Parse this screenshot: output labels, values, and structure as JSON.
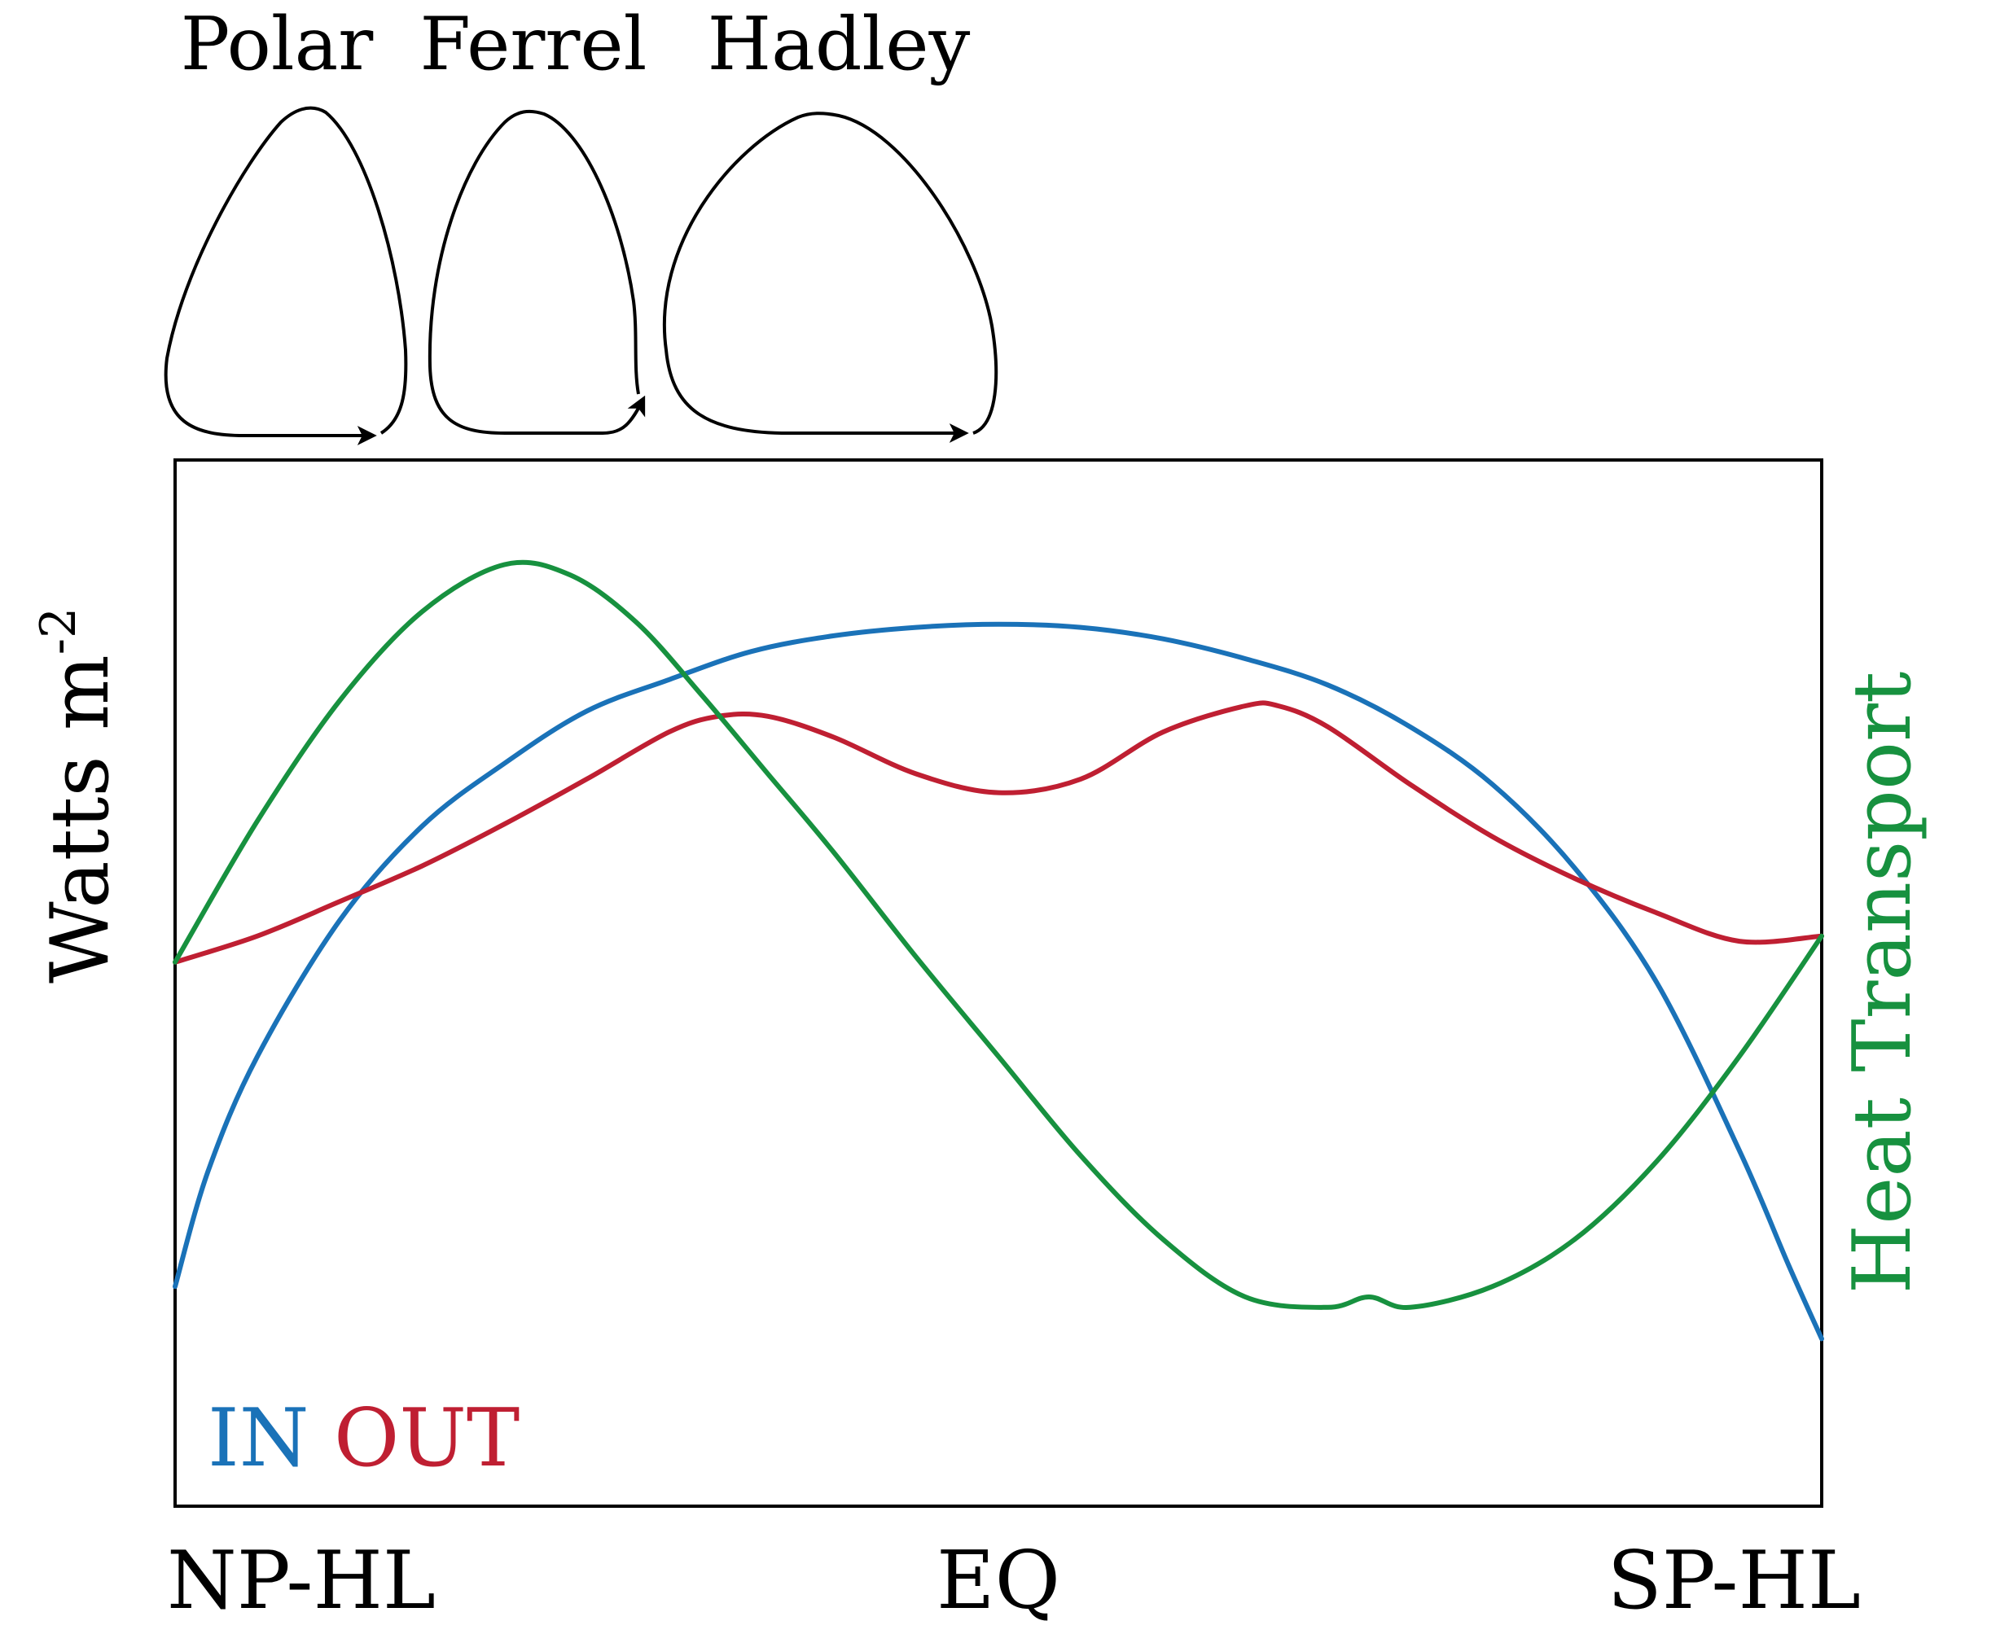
{
  "cells": [
    {
      "label": "Polar"
    },
    {
      "label": "Ferrel"
    },
    {
      "label": "Hadley"
    }
  ],
  "chart_data": {
    "type": "line",
    "ylabel": "Watts m",
    "ylabel_superscript": "-2",
    "right_label": "Heat Transport",
    "x_ticks": [
      {
        "label": "NP-HL",
        "x": 0
      },
      {
        "label": "EQ",
        "x": 0.5
      },
      {
        "label": "SP-HL",
        "x": 1
      }
    ],
    "xlim": [
      0,
      1
    ],
    "ylim": [
      0,
      1
    ],
    "grid": false,
    "legend": {
      "placement": "bottom-left",
      "entries": [
        "IN",
        "OUT"
      ]
    },
    "series": [
      {
        "name": "IN",
        "color": "#1a72b8",
        "x": [
          0,
          0.02,
          0.05,
          0.1,
          0.15,
          0.2,
          0.25,
          0.3,
          0.35,
          0.4,
          0.45,
          0.5,
          0.55,
          0.6,
          0.65,
          0.7,
          0.75,
          0.8,
          0.85,
          0.9,
          0.95,
          0.98,
          1
        ],
        "y": [
          0.21,
          0.32,
          0.43,
          0.56,
          0.65,
          0.71,
          0.76,
          0.79,
          0.817,
          0.832,
          0.84,
          0.843,
          0.84,
          0.829,
          0.81,
          0.785,
          0.745,
          0.69,
          0.61,
          0.5,
          0.34,
          0.23,
          0.16
        ]
      },
      {
        "name": "OUT",
        "color": "#bf1f32",
        "x": [
          0,
          0.05,
          0.1,
          0.15,
          0.2,
          0.25,
          0.3,
          0.33,
          0.36,
          0.4,
          0.45,
          0.5,
          0.55,
          0.6,
          0.65,
          0.67,
          0.7,
          0.75,
          0.8,
          0.85,
          0.9,
          0.95,
          1
        ],
        "y": [
          0.52,
          0.545,
          0.578,
          0.612,
          0.652,
          0.695,
          0.74,
          0.755,
          0.755,
          0.735,
          0.7,
          0.682,
          0.695,
          0.74,
          0.765,
          0.765,
          0.745,
          0.69,
          0.64,
          0.6,
          0.567,
          0.54,
          0.545
        ]
      },
      {
        "name": "Heat Transport",
        "color": "#17913f",
        "x": [
          0,
          0.05,
          0.1,
          0.15,
          0.2,
          0.24,
          0.28,
          0.32,
          0.36,
          0.4,
          0.45,
          0.5,
          0.55,
          0.6,
          0.65,
          0.7,
          0.725,
          0.75,
          0.8,
          0.85,
          0.9,
          0.95,
          1
        ],
        "y": [
          0.52,
          0.655,
          0.77,
          0.855,
          0.9,
          0.89,
          0.845,
          0.775,
          0.7,
          0.625,
          0.525,
          0.43,
          0.335,
          0.255,
          0.2,
          0.19,
          0.2,
          0.19,
          0.21,
          0.255,
          0.33,
          0.43,
          0.545
        ]
      }
    ]
  }
}
